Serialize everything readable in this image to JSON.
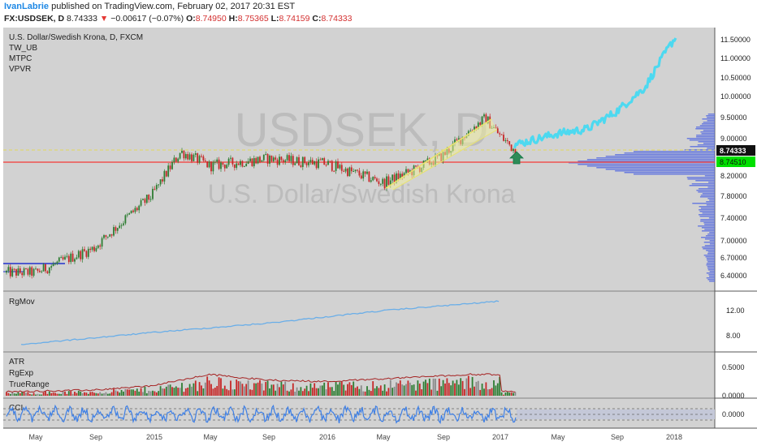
{
  "header": {
    "author": "IvanLabrie",
    "published": "published on TradingView.com, February 02, 2017 20:31 EST",
    "symbol": "FX:USDSEK, D",
    "last": "8.74333",
    "down_arrow": "▼",
    "change": "−0.00617 (−0.07%)",
    "o_label": "O:",
    "o_value": "8.74950",
    "h_label": "H:",
    "h_value": "8.75365",
    "l_label": "L:",
    "l_value": "8.74159",
    "c_label": "C:",
    "c_value": "8.74333"
  },
  "main_pane": {
    "title": "U.S. Dollar/Swedish Krona, D, FXCM",
    "indicators": [
      "TW_UB",
      "MTPC",
      "VPVR"
    ],
    "watermark_symbol": "USDSEK, D",
    "watermark_name": "U.S. Dollar/Swedish Krona",
    "price_badge": "8.74333",
    "level_badge": "8.74510"
  },
  "rgmov_pane": {
    "label": "RgMov"
  },
  "atr_pane": {
    "labels": [
      "ATR",
      "RgExp",
      "TrueRange"
    ]
  },
  "cci_pane": {
    "label": "CCI"
  },
  "colors": {
    "background": "#d2d2d2",
    "bull_candle": "#2e7d32",
    "bear_candle": "#c62828",
    "projection": "#4dd9f0",
    "support_line": "#ef5350",
    "rgmov_line": "#6aaee8",
    "cci_line": "#3d7fe6",
    "volume_profile": "#5a6fe0"
  },
  "chart_data": [
    {
      "type": "line",
      "name": "price",
      "y_axis_ticks": [
        "11.50000",
        "11.00000",
        "10.50000",
        "10.00000",
        "9.50000",
        "9.00000",
        "8.20000",
        "7.80000",
        "7.40000",
        "7.00000",
        "6.70000",
        "6.40000"
      ],
      "x_axis_ticks": [
        "May",
        "Sep",
        "2015",
        "May",
        "Sep",
        "2016",
        "May",
        "Sep",
        "2017",
        "May",
        "Sep",
        "2018"
      ],
      "x": [
        "2014-05",
        "2014-09",
        "2015-01",
        "2015-03",
        "2015-05",
        "2015-09",
        "2016-01",
        "2016-05",
        "2016-07",
        "2016-09",
        "2016-11",
        "2016-12",
        "2017-01",
        "2017-02"
      ],
      "values": [
        6.45,
        6.85,
        7.8,
        8.7,
        8.4,
        8.55,
        8.45,
        8.05,
        8.3,
        8.6,
        9.2,
        9.45,
        9.05,
        8.74
      ],
      "projection": {
        "x": [
          "2017-02",
          "2017-05",
          "2017-07",
          "2017-09",
          "2017-11",
          "2018-01"
        ],
        "values": [
          8.85,
          9.1,
          9.2,
          9.6,
          10.2,
          11.5
        ]
      },
      "horizontal_levels": [
        8.7451,
        8.74333
      ],
      "ylim": [
        6.25,
        11.65
      ],
      "log_scale": true
    },
    {
      "type": "line",
      "name": "RgMov",
      "y_axis_ticks": [
        "12.00",
        "8.00"
      ],
      "x": [
        "2014-04",
        "2015-01",
        "2015-09",
        "2016-05",
        "2017-01"
      ],
      "values": [
        6.6,
        8.5,
        10.0,
        12.0,
        13.5
      ],
      "ylim": [
        6,
        14
      ]
    },
    {
      "type": "bar",
      "name": "ATR / TrueRange",
      "y_axis_ticks": [
        "0.5000",
        "0.0000"
      ],
      "x": [
        "2014-04",
        "2014-09",
        "2015-01",
        "2015-05",
        "2015-09",
        "2016-01",
        "2016-06",
        "2016-11",
        "2017-01"
      ],
      "values": [
        0.06,
        0.08,
        0.14,
        0.3,
        0.22,
        0.2,
        0.25,
        0.3,
        0.3
      ],
      "ylim": [
        0,
        0.7
      ]
    },
    {
      "type": "line",
      "name": "CCI",
      "y_axis_ticks": [
        "0.0000"
      ],
      "x": [
        "2014-04",
        "2015-01",
        "2016-01",
        "2017-01"
      ],
      "values": [
        0,
        0,
        0,
        0
      ],
      "ylim": [
        -250,
        250
      ]
    }
  ]
}
